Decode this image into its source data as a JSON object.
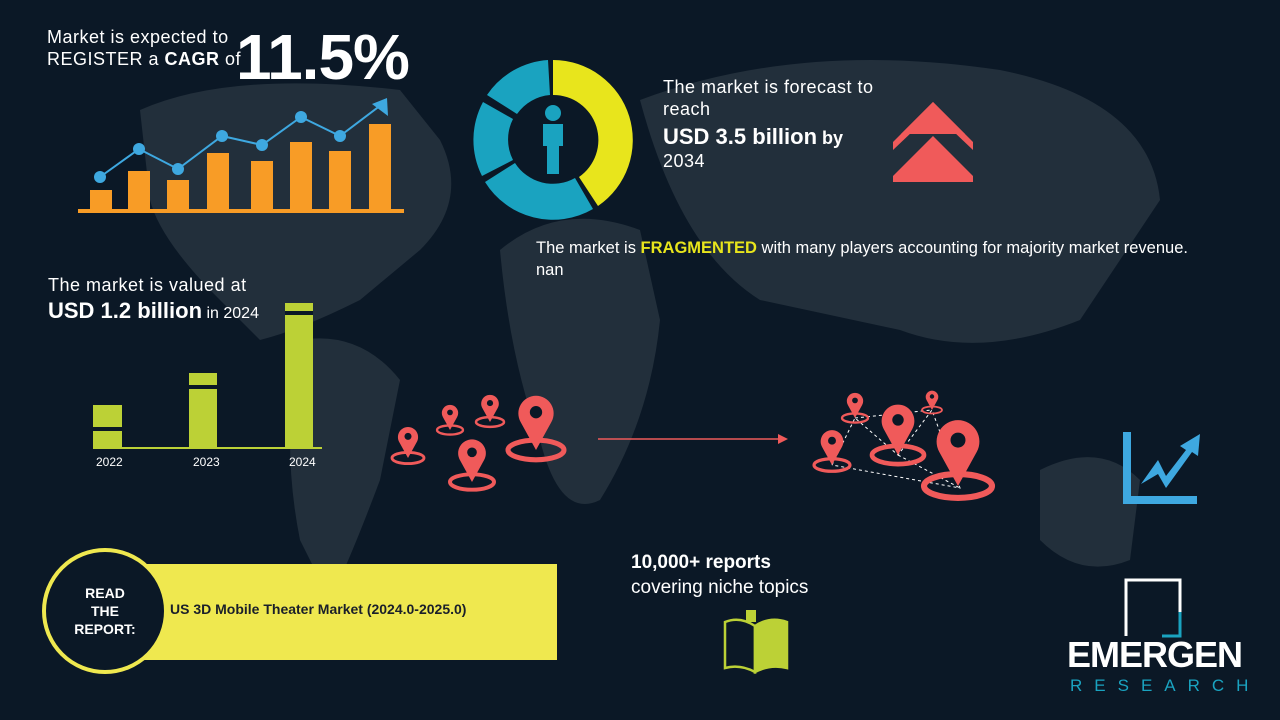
{
  "cagr": {
    "line1": "Market is expected to",
    "line2_prefix": "REGISTER a ",
    "line2_bold": "CAGR",
    "line2_suffix": " of",
    "value": "11.5%"
  },
  "forecast": {
    "line1": "The market is forecast to reach",
    "value": "USD 3.5 billion",
    "by": " by",
    "year": "2034"
  },
  "fragmented": {
    "prefix": "The market is ",
    "highlight": "FRAGMENTED",
    "suffix": " with many players accounting for majority market revenue. nan"
  },
  "valued": {
    "line1": "The market is valued at",
    "value": "USD 1.2 billion",
    "suffix": " in 2024"
  },
  "bars": {
    "years": [
      "2022",
      "2023",
      "2024"
    ]
  },
  "reports": {
    "line1": "10,000+ reports",
    "line2": "covering niche topics"
  },
  "read_report": {
    "label_lines": [
      "READ",
      "THE",
      "REPORT:"
    ],
    "title": "US 3D Mobile Theater Market (2024.0-2025.0)"
  },
  "logo": {
    "name": "EMERGEN",
    "sub": "RESEARCH"
  },
  "colors": {
    "background": "#0b1826",
    "orange": "#f89c26",
    "blue": "#3ea8e0",
    "yellow": "#e8e51c",
    "green": "#bcd136",
    "red": "#f05a5a",
    "teal": "#1aa3c0",
    "map": "#222f3b"
  },
  "icons": [
    "growth-chart-icon",
    "donut-person-icon",
    "double-chevron-up-icon",
    "location-pins-icon",
    "network-pins-icon",
    "trend-up-icon",
    "book-icon"
  ]
}
